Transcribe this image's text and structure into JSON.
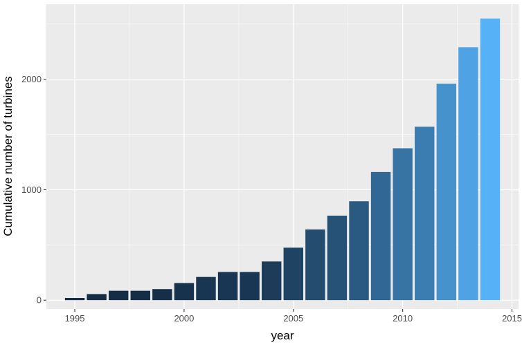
{
  "chart_data": {
    "type": "bar",
    "xlabel": "year",
    "ylabel": "Cumulative number of turbines",
    "x": [
      1995,
      1996,
      1997,
      1998,
      1999,
      2000,
      2001,
      2002,
      2003,
      2004,
      2005,
      2006,
      2007,
      2008,
      2009,
      2010,
      2011,
      2012,
      2013,
      2014
    ],
    "values": [
      20,
      55,
      85,
      85,
      100,
      155,
      210,
      255,
      255,
      350,
      475,
      640,
      765,
      895,
      1160,
      1375,
      1570,
      1960,
      2290,
      2550
    ],
    "xlim": [
      1993.7,
      2015.3
    ],
    "ylim": [
      -80,
      2680
    ],
    "x_ticks": [
      1995,
      2000,
      2005,
      2010,
      2015
    ],
    "y_ticks": [
      0,
      1000,
      2000
    ],
    "grid": true,
    "panel_background": "#ebebeb",
    "fill_gradient": {
      "low": "#132b43",
      "high": "#56b1f7"
    }
  }
}
